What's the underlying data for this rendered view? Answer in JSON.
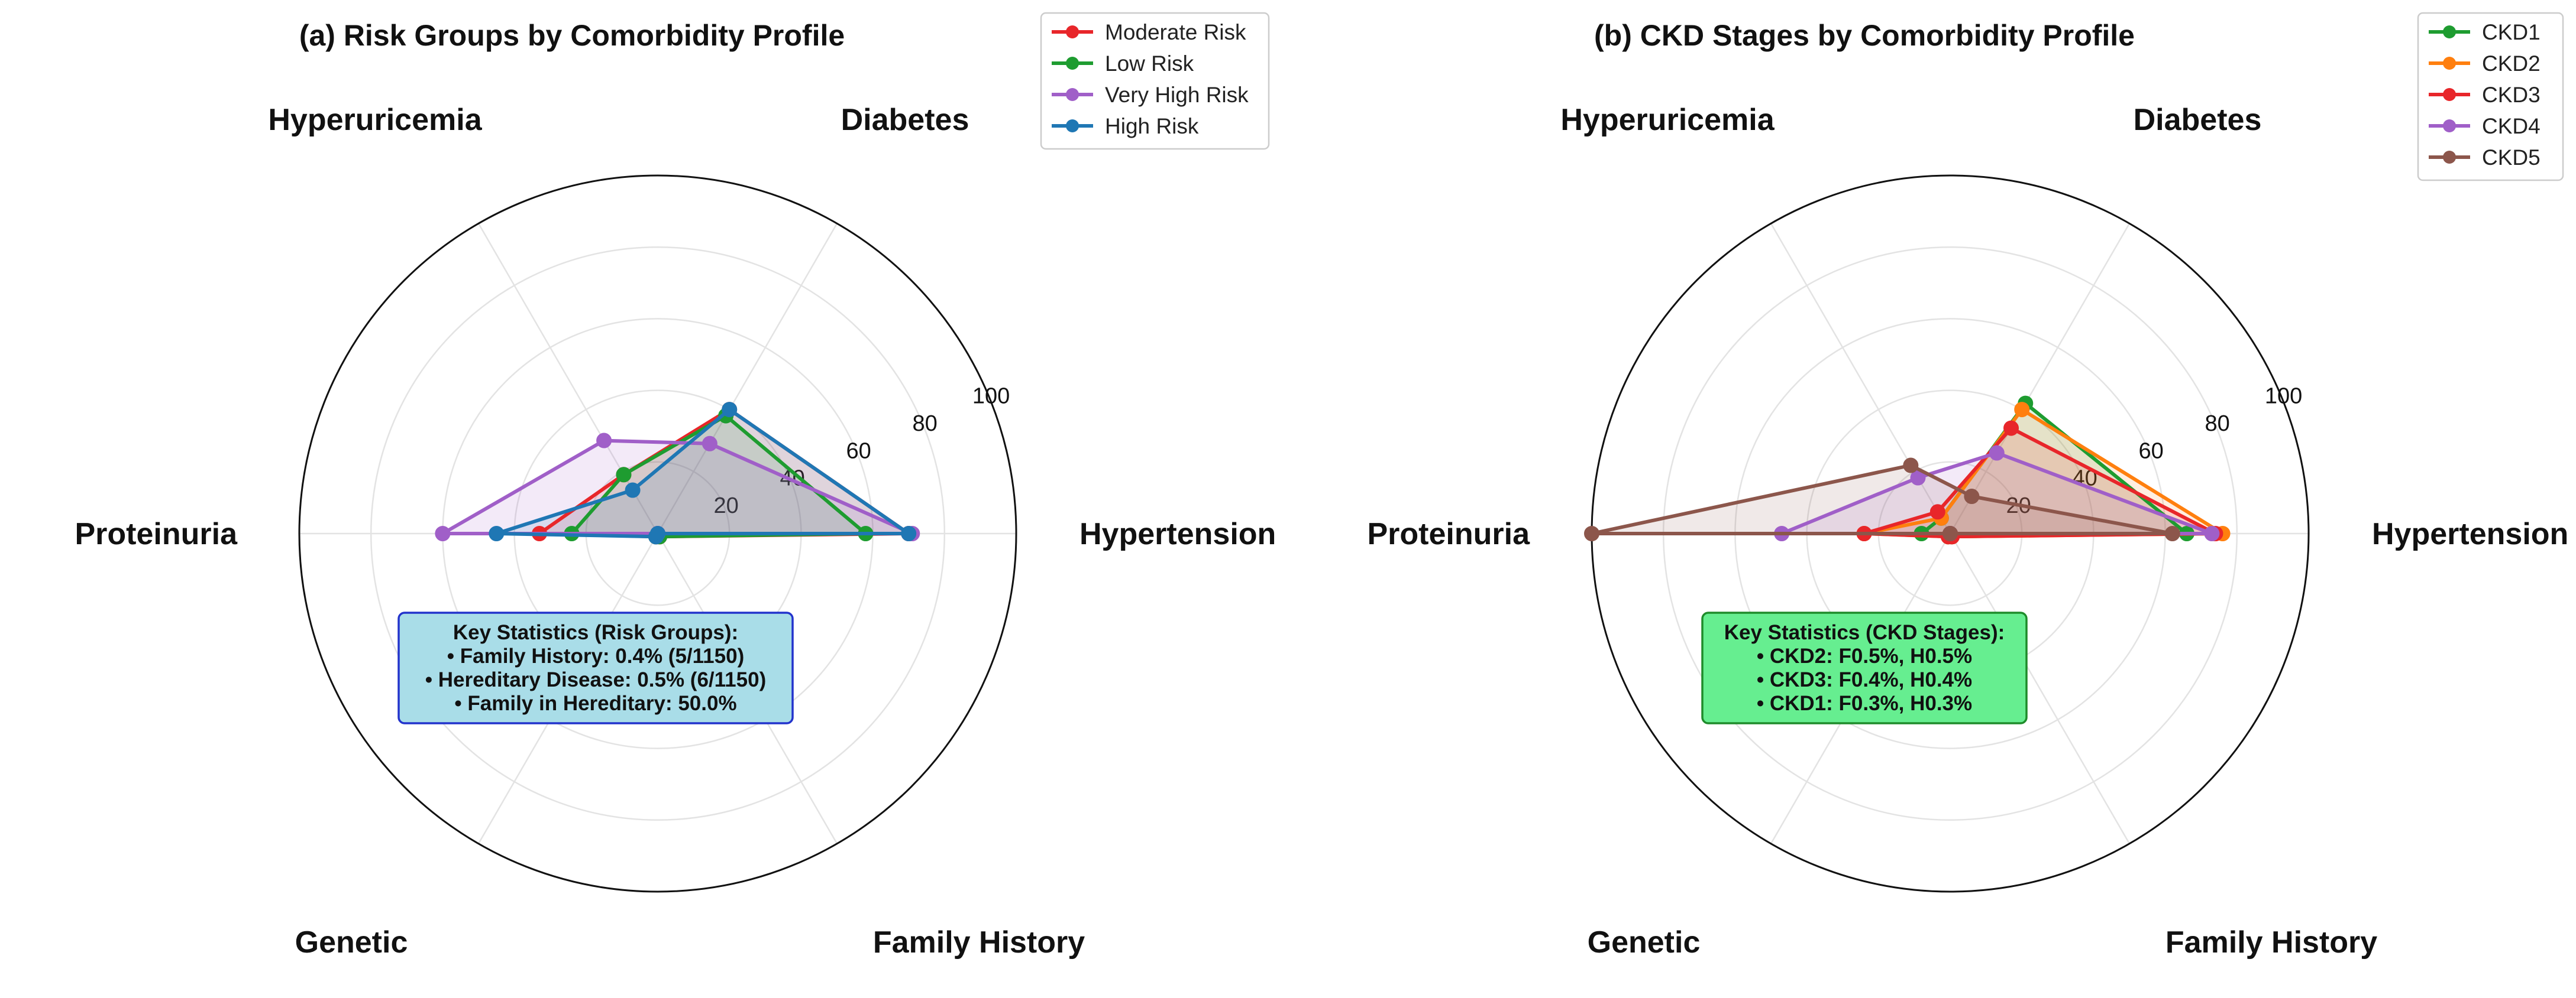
{
  "chart_data": [
    {
      "type": "radar",
      "title": "(a) Risk Groups by Comorbidity Profile",
      "axes": [
        "Hypertension",
        "Diabetes",
        "Hyperuricemia",
        "Proteinuria",
        "Genetic",
        "Family History"
      ],
      "rlim": [
        0,
        100
      ],
      "rticks": [
        20,
        40,
        60,
        80,
        100
      ],
      "grid": true,
      "legend_position": "top-right",
      "series": [
        {
          "name": "Moderate Risk",
          "color": "#e8262a",
          "values": [
            70,
            40,
            19,
            33,
            1,
            1
          ]
        },
        {
          "name": "Low Risk",
          "color": "#1e9c30",
          "values": [
            58,
            38,
            19,
            24,
            1,
            1
          ]
        },
        {
          "name": "Very High Risk",
          "color": "#a05fc8",
          "values": [
            71,
            29,
            30,
            60,
            0,
            0
          ]
        },
        {
          "name": "High Risk",
          "color": "#1f77b4",
          "values": [
            70,
            40,
            14,
            45,
            1,
            0
          ]
        }
      ],
      "stats_box": {
        "lines": [
          "Key Statistics (Risk Groups):",
          "• Family History: 0.4% (5/1150)",
          "• Hereditary Disease: 0.5% (6/1150)",
          "• Family in Hereditary: 50.0%"
        ],
        "fill": "#a9dde8",
        "edge": "#2233cc"
      }
    },
    {
      "type": "radar",
      "title": "(b) CKD Stages by Comorbidity Profile",
      "axes": [
        "Hypertension",
        "Diabetes",
        "Hyperuricemia",
        "Proteinuria",
        "Genetic",
        "Family History"
      ],
      "rlim": [
        0,
        100
      ],
      "rticks": [
        20,
        40,
        60,
        80,
        100
      ],
      "grid": true,
      "legend_position": "top-right",
      "series": [
        {
          "name": "CKD1",
          "color": "#1e9c30",
          "values": [
            66,
            42,
            5,
            8,
            1,
            1
          ]
        },
        {
          "name": "CKD2",
          "color": "#ff7f0e",
          "values": [
            76,
            40,
            5,
            24,
            1,
            1
          ]
        },
        {
          "name": "CKD3",
          "color": "#e8262a",
          "values": [
            74,
            34,
            7,
            24,
            1,
            1
          ]
        },
        {
          "name": "CKD4",
          "color": "#a05fc8",
          "values": [
            73,
            26,
            18,
            47,
            0,
            0
          ]
        },
        {
          "name": "CKD5",
          "color": "#8c564b",
          "values": [
            62,
            12,
            22,
            100,
            0,
            0
          ]
        }
      ],
      "stats_box": {
        "lines": [
          "Key Statistics (CKD Stages):",
          "• CKD2: F0.5%, H0.5%",
          "• CKD3: F0.4%, H0.4%",
          "• CKD1: F0.3%, H0.3%"
        ],
        "fill": "#66ee90",
        "edge": "#1e8c2a"
      }
    }
  ]
}
